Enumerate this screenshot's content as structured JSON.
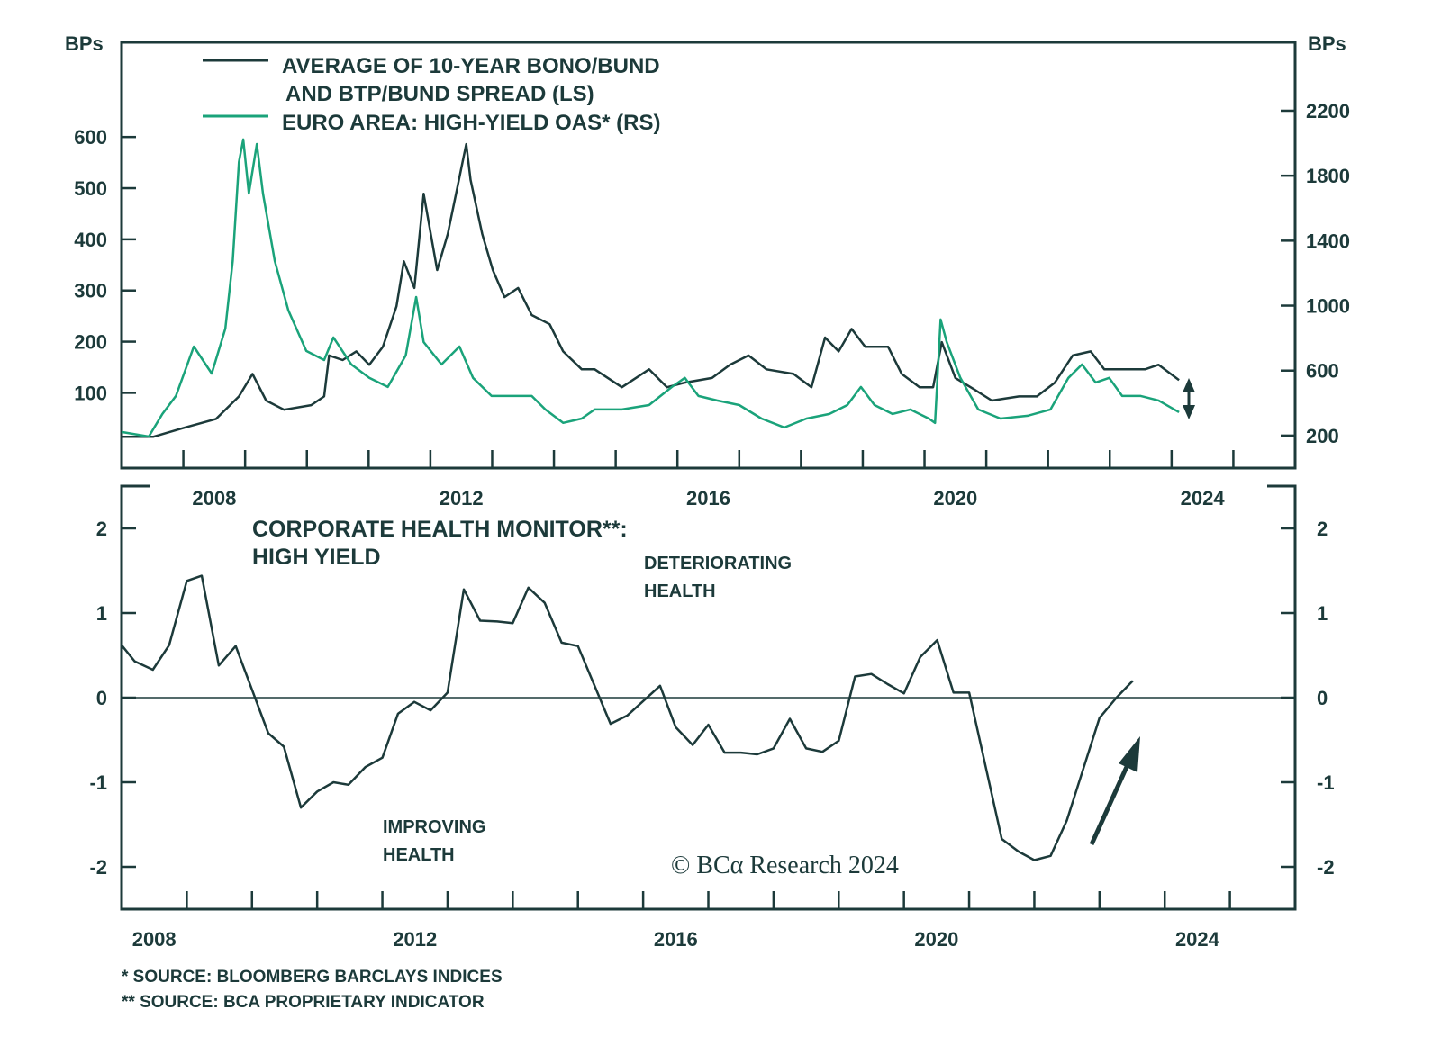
{
  "colors": {
    "dark": "#1c3a3a",
    "green": "#1aa37a"
  },
  "chart_data": [
    {
      "type": "line",
      "left_axis_label": "BPs",
      "right_axis_label": "BPs",
      "left_ticks": [
        "100",
        "200",
        "300",
        "400",
        "500",
        "600"
      ],
      "right_ticks": [
        "200",
        "600",
        "1000",
        "1400",
        "1800",
        "2200"
      ],
      "x_tick_labels": [
        "2008",
        "2012",
        "2016",
        "2020",
        "2024"
      ],
      "xlim": [
        2007,
        2026
      ],
      "ylim_left": [
        -47,
        785
      ],
      "ylim_right": [
        0,
        2621
      ],
      "legend": [
        "AVERAGE OF 10-YEAR BONO/BUND",
        "AND BTP/BUND SPREAD (LS)",
        "EURO AREA: HIGH-YIELD OAS* (RS)"
      ],
      "series": [
        {
          "name": "AVERAGE OF 10-YEAR BONO/BUND AND BTP/BUND SPREAD (LS)",
          "axis": "left",
          "color": "#1c3a3a",
          "x": [
            2007.0,
            2007.51,
            2008.02,
            2008.53,
            2008.9,
            2009.12,
            2009.34,
            2009.63,
            2010.07,
            2010.28,
            2010.36,
            2010.58,
            2010.8,
            2011.01,
            2011.23,
            2011.45,
            2011.57,
            2011.74,
            2011.89,
            2012.11,
            2012.28,
            2012.43,
            2012.58,
            2012.65,
            2012.84,
            2013.01,
            2013.2,
            2013.42,
            2013.64,
            2013.93,
            2014.15,
            2014.45,
            2014.66,
            2015.1,
            2015.54,
            2015.83,
            2016.12,
            2016.56,
            2016.85,
            2017.15,
            2017.44,
            2017.88,
            2018.17,
            2018.39,
            2018.61,
            2018.82,
            2019.04,
            2019.41,
            2019.63,
            2019.92,
            2020.14,
            2020.28,
            2020.5,
            2020.8,
            2021.09,
            2021.53,
            2021.82,
            2022.11,
            2022.4,
            2022.69,
            2022.91,
            2023.2,
            2023.57,
            2023.79,
            2024.12
          ],
          "y": [
            14,
            14,
            32,
            49,
            93,
            137,
            85,
            67,
            76,
            93,
            173,
            164,
            181,
            155,
            190,
            269,
            357,
            305,
            489,
            340,
            410,
            498,
            586,
            516,
            410,
            340,
            287,
            305,
            252,
            234,
            181,
            146,
            146,
            111,
            146,
            111,
            120,
            129,
            155,
            173,
            146,
            137,
            111,
            208,
            181,
            225,
            190,
            190,
            137,
            111,
            111,
            199,
            129,
            107,
            85,
            93,
            93,
            120,
            173,
            181,
            146,
            146,
            146,
            155,
            125
          ]
        },
        {
          "name": "EURO AREA: HIGH-YIELD OAS* (RS)",
          "axis": "right",
          "color": "#1aa37a",
          "x": [
            2007.0,
            2007.44,
            2007.66,
            2007.88,
            2008.17,
            2008.46,
            2008.68,
            2008.8,
            2008.9,
            2008.97,
            2009.06,
            2009.19,
            2009.29,
            2009.48,
            2009.7,
            2009.99,
            2010.28,
            2010.43,
            2010.72,
            2011.01,
            2011.31,
            2011.6,
            2011.77,
            2011.89,
            2012.18,
            2012.47,
            2012.69,
            2012.99,
            2013.28,
            2013.64,
            2013.86,
            2014.15,
            2014.45,
            2014.66,
            2015.1,
            2015.54,
            2015.91,
            2016.12,
            2016.34,
            2016.64,
            2017.0,
            2017.36,
            2017.73,
            2018.09,
            2018.46,
            2018.75,
            2018.97,
            2019.19,
            2019.48,
            2019.77,
            2020.07,
            2020.17,
            2020.26,
            2020.36,
            2020.58,
            2020.87,
            2021.23,
            2021.67,
            2022.04,
            2022.33,
            2022.55,
            2022.77,
            2022.99,
            2023.2,
            2023.5,
            2023.79,
            2024.12
          ],
          "y": [
            222,
            194,
            333,
            444,
            748,
            582,
            859,
            1275,
            1884,
            2023,
            1690,
            1995,
            1690,
            1275,
            970,
            721,
            665,
            804,
            638,
            555,
            499,
            693,
            1053,
            776,
            638,
            748,
            555,
            444,
            444,
            444,
            361,
            278,
            305,
            361,
            361,
            388,
            499,
            555,
            444,
            416,
            388,
            305,
            250,
            305,
            333,
            388,
            499,
            388,
            333,
            361,
            305,
            278,
            915,
            776,
            555,
            361,
            305,
            322,
            361,
            555,
            638,
            527,
            555,
            444,
            444,
            416,
            344
          ]
        }
      ]
    },
    {
      "type": "line",
      "title": [
        "CORPORATE HEALTH MONITOR**:",
        "HIGH YIELD"
      ],
      "left_ticks": [
        "2",
        "1",
        "0",
        "-1",
        "-2"
      ],
      "right_ticks": [
        "2",
        "1",
        "0",
        "-1",
        "-2"
      ],
      "x_tick_labels": [
        "2008",
        "2012",
        "2016",
        "2020",
        "2024"
      ],
      "xlim": [
        2008,
        2026
      ],
      "ylim": [
        -2.5,
        2.5
      ],
      "annotations": {
        "up": [
          "DETERIORATING",
          "HEALTH"
        ],
        "down": [
          "IMPROVING",
          "HEALTH"
        ]
      },
      "series": [
        {
          "color": "#1c3a3a",
          "x": [
            2008.0,
            2008.2,
            2008.48,
            2008.73,
            2009.0,
            2009.23,
            2009.49,
            2009.75,
            2010.25,
            2010.49,
            2010.75,
            2011.0,
            2011.25,
            2011.48,
            2011.74,
            2012.0,
            2012.24,
            2012.49,
            2012.74,
            2013.0,
            2013.25,
            2013.5,
            2013.76,
            2014.0,
            2014.24,
            2014.49,
            2014.75,
            2015.0,
            2015.5,
            2015.76,
            2016.26,
            2016.5,
            2016.76,
            2017.0,
            2017.25,
            2017.5,
            2017.75,
            2018.0,
            2018.25,
            2018.5,
            2018.75,
            2019.0,
            2019.25,
            2019.5,
            2019.75,
            2020.0,
            2020.25,
            2020.51,
            2020.76,
            2021.0,
            2021.5,
            2021.76,
            2022.0,
            2022.25,
            2022.5,
            2023.0,
            2023.26,
            2023.51
          ],
          "y": [
            0.62,
            0.43,
            0.33,
            0.62,
            1.38,
            1.44,
            0.38,
            0.61,
            -0.42,
            -0.58,
            -1.3,
            -1.11,
            -1.0,
            -1.03,
            -0.82,
            -0.71,
            -0.19,
            -0.05,
            -0.15,
            0.06,
            1.28,
            0.91,
            0.9,
            0.88,
            1.3,
            1.12,
            0.65,
            0.61,
            -0.31,
            -0.21,
            0.14,
            -0.35,
            -0.56,
            -0.32,
            -0.65,
            -0.65,
            -0.67,
            -0.6,
            -0.25,
            -0.6,
            -0.64,
            -0.51,
            0.25,
            0.28,
            0.16,
            0.05,
            0.48,
            0.68,
            0.06,
            0.06,
            -1.67,
            -1.82,
            -1.92,
            -1.87,
            -1.45,
            -0.24,
            0.0,
            0.2
          ]
        }
      ]
    }
  ],
  "watermark": "© BCα Research 2024",
  "footnotes": [
    "*   SOURCE: BLOOMBERG BARCLAYS INDICES",
    "** SOURCE: BCA PROPRIETARY INDICATOR"
  ]
}
